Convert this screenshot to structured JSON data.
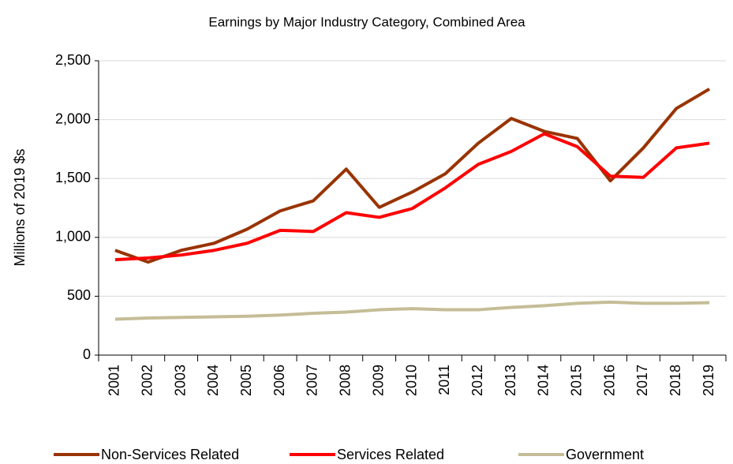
{
  "chart_data": {
    "type": "line",
    "title": "Earnings by Major Industry Category, Combined Area",
    "y_label": "Millions of 2019 $s",
    "categories": [
      "2001",
      "2002",
      "2003",
      "2004",
      "2005",
      "2006",
      "2007",
      "2008",
      "2009",
      "2010",
      "2011",
      "2012",
      "2013",
      "2014",
      "2015",
      "2016",
      "2017",
      "2018",
      "2019"
    ],
    "series": [
      {
        "name": "Non-Services Related",
        "color": "#993300",
        "values": [
          890,
          790,
          890,
          950,
          1070,
          1225,
          1310,
          1580,
          1255,
          1385,
          1540,
          1800,
          2010,
          1900,
          1840,
          1480,
          1760,
          2095,
          2260
        ]
      },
      {
        "name": "Services Related",
        "color": "#ff0000",
        "values": [
          810,
          825,
          850,
          890,
          950,
          1060,
          1050,
          1210,
          1170,
          1245,
          1420,
          1620,
          1730,
          1880,
          1770,
          1520,
          1510,
          1760,
          1800
        ]
      },
      {
        "name": "Government",
        "color": "#c4bd97",
        "values": [
          305,
          315,
          320,
          325,
          330,
          340,
          355,
          365,
          385,
          395,
          385,
          385,
          405,
          420,
          440,
          450,
          440,
          440,
          445
        ]
      }
    ],
    "ylim": [
      0,
      2500
    ],
    "yticks": [
      0,
      500,
      {
        "value": 1000,
        "label": "1,000"
      },
      {
        "value": 1500,
        "label": "1,500"
      },
      {
        "value": 2000,
        "label": "2,000"
      },
      {
        "value": 2500,
        "label": "2,500"
      }
    ],
    "grid": true,
    "legend": "bottom"
  }
}
